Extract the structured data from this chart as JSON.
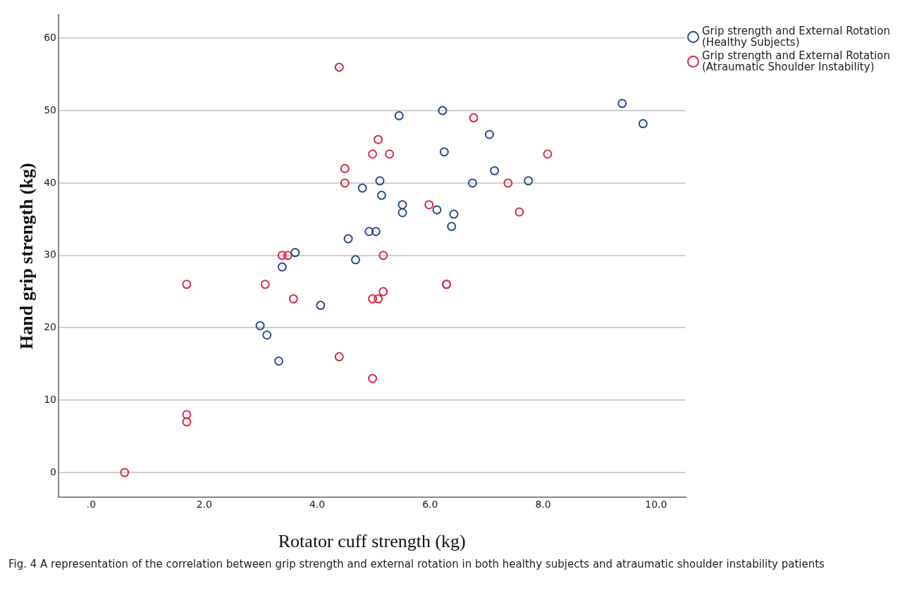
{
  "chart_data": {
    "type": "scatter",
    "xlabel": "Rotator cuff strength (kg)",
    "ylabel": "Hand grip strength (kg)",
    "xlim": [
      -0.58,
      10.52
    ],
    "ylim": [
      -3.4,
      63.2
    ],
    "xticks": [
      {
        "value": 0,
        "label": ".0"
      },
      {
        "value": 2,
        "label": "2.0"
      },
      {
        "value": 4,
        "label": "4.0"
      },
      {
        "value": 6,
        "label": "6.0"
      },
      {
        "value": 8,
        "label": "8.0"
      },
      {
        "value": 10,
        "label": "10.0"
      }
    ],
    "yticks": [
      0,
      10,
      20,
      30,
      40,
      50,
      60
    ],
    "grid": "y",
    "legend": "top right",
    "marker": "circle",
    "annotations": [
      "Fig. 4 A representation of the correlation between grip strength and external rotation in both healthy subjects and atraumatic shoulder instability patients"
    ],
    "series": [
      {
        "name": "Grip strength and External Rotation (Healthy Subjects)",
        "color": "#2e4a8c",
        "x": [
          9.4,
          9.77,
          6.22,
          5.45,
          7.05,
          6.25,
          7.14,
          7.74,
          6.75,
          5.11,
          4.8,
          5.14,
          5.51,
          5.51,
          6.12,
          6.42,
          6.38,
          4.92,
          5.04,
          4.55,
          4.68,
          3.61,
          3.38,
          4.06,
          2.99,
          3.11,
          3.32
        ],
        "values": [
          51,
          48.2,
          50,
          49.3,
          46.7,
          44.3,
          41.7,
          40.3,
          40,
          40.3,
          39.3,
          38.3,
          37,
          35.9,
          36.3,
          35.7,
          34,
          33.3,
          33.3,
          32.3,
          29.4,
          30.4,
          28.4,
          23.1,
          20.3,
          19,
          15.4
        ]
      },
      {
        "name": "Grip strength and External Rotation (Atraumatic Shoulder Instability)",
        "color": "#d9294a",
        "x": [
          4.39,
          6.77,
          5.08,
          4.98,
          5.28,
          8.08,
          4.49,
          4.49,
          7.38,
          5.98,
          7.58,
          3.38,
          3.48,
          5.17,
          1.69,
          3.08,
          6.29,
          6.29,
          3.58,
          4.98,
          5.08,
          5.17,
          4.39,
          4.98,
          1.69,
          1.69,
          0.59
        ],
        "values": [
          56,
          49,
          46,
          44,
          44,
          44,
          42,
          40,
          40,
          37,
          36,
          30,
          30,
          30,
          26,
          26,
          26,
          26,
          24,
          24,
          24,
          25,
          16,
          13,
          8,
          7,
          0
        ]
      }
    ]
  }
}
